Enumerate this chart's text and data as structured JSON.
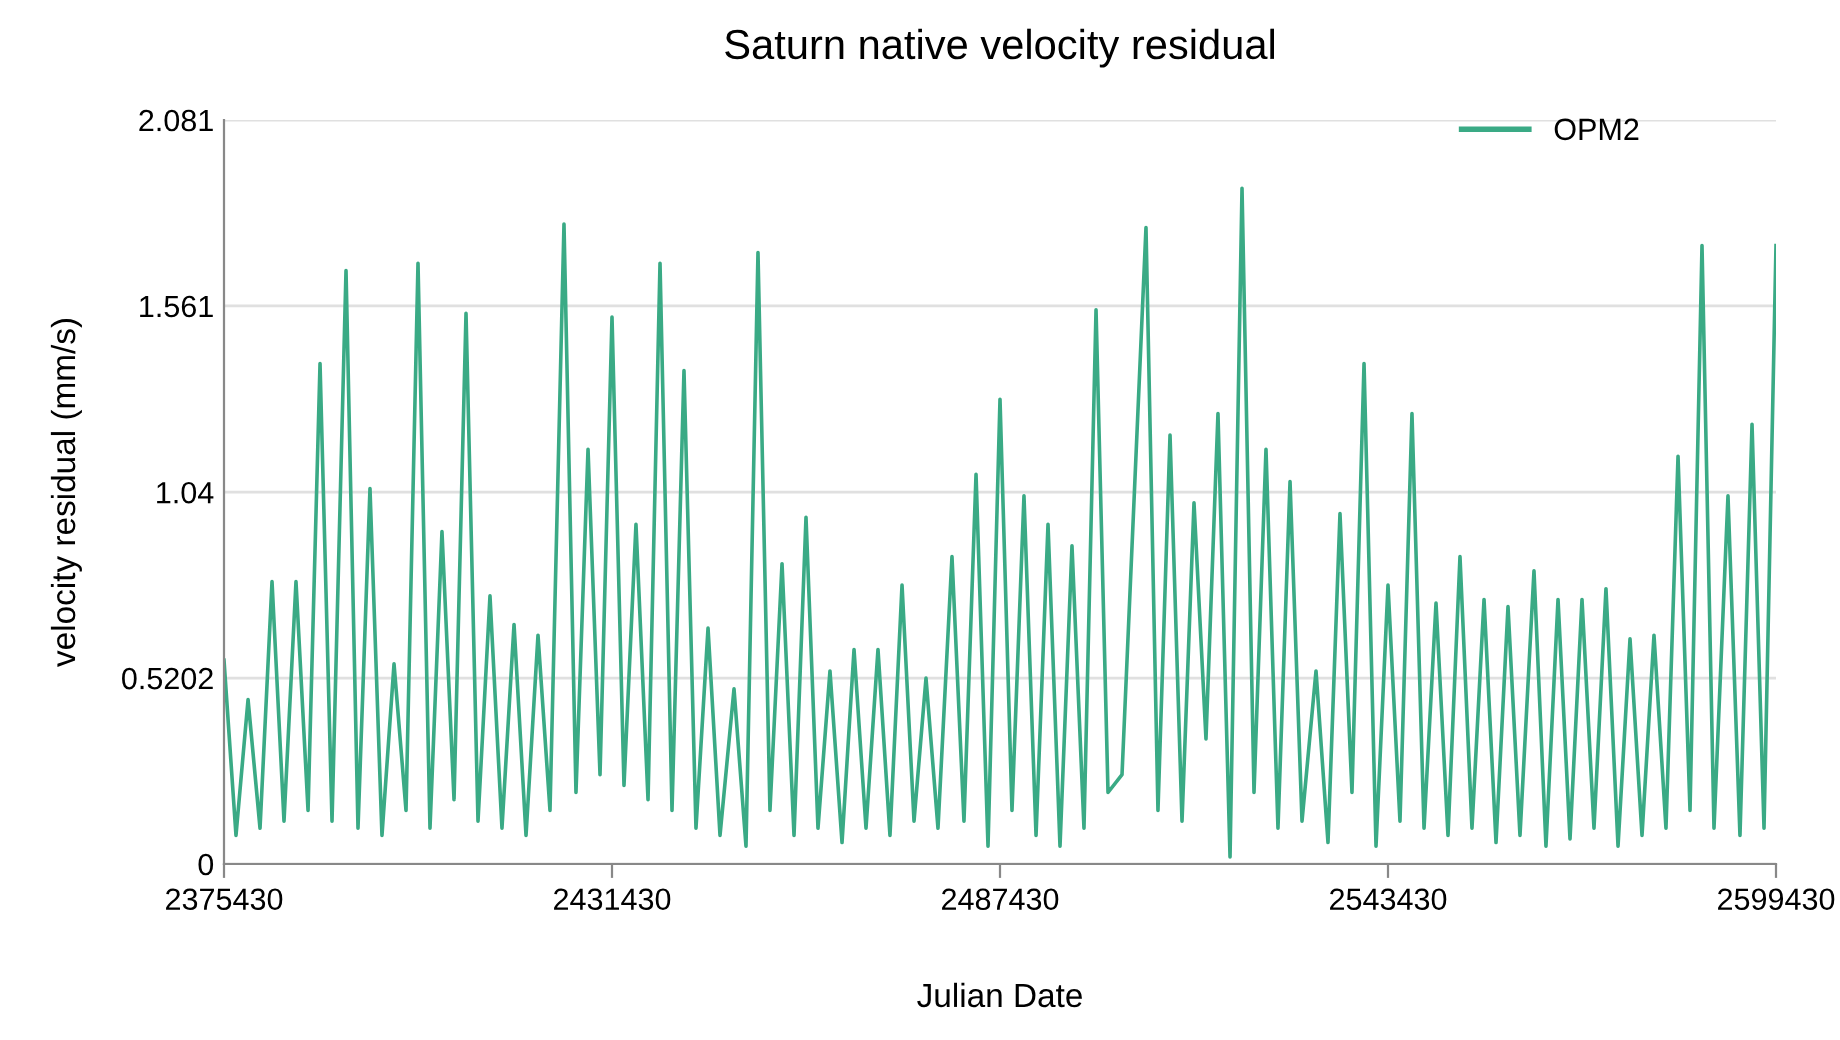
{
  "chart_data": {
    "type": "line",
    "title": "Saturn native velocity residual",
    "xlabel": "Julian Date",
    "ylabel": "velocity residual (mm/s)",
    "xlim": [
      2375430,
      2599430
    ],
    "xticks": [
      2375430,
      2431430,
      2487430,
      2543430,
      2599430
    ],
    "ylim": [
      0,
      2.081
    ],
    "yticks": [
      0,
      0.5202,
      1.04,
      1.561,
      2.081
    ],
    "grid": "y",
    "legend": "top right",
    "x": [
      2375430,
      2377160,
      2378900,
      2380630,
      2382360,
      2384090,
      2385820,
      2387560,
      2389290,
      2391020,
      2393040,
      2394770,
      2396500,
      2398230,
      2399970,
      2401700,
      2403430,
      2405160,
      2406890,
      2408630,
      2410360,
      2412090,
      2413820,
      2415550,
      2417290,
      2419020,
      2420750,
      2422480,
      2424500,
      2426230,
      2427970,
      2429700,
      2431430,
      2433160,
      2434890,
      2436630,
      2438360,
      2440090,
      2441820,
      2443550,
      2445290,
      2447020,
      2449040,
      2450770,
      2452500,
      2454230,
      2455970,
      2457700,
      2459430,
      2461160,
      2462890,
      2464630,
      2466360,
      2468090,
      2469820,
      2471550,
      2473290,
      2475020,
      2476750,
      2478480,
      2480500,
      2482230,
      2483970,
      2485700,
      2487430,
      2489160,
      2490890,
      2492630,
      2494360,
      2496090,
      2497820,
      2499550,
      2501290,
      2503020,
      2505040,
      2508500,
      2510230,
      2511970,
      2513700,
      2515430,
      2517160,
      2518890,
      2520630,
      2522360,
      2524090,
      2525820,
      2527550,
      2529290,
      2531020,
      2533040,
      2534770,
      2536500,
      2538230,
      2539970,
      2541700,
      2543430,
      2545160,
      2546890,
      2548630,
      2550360,
      2552090,
      2553820,
      2555550,
      2557290,
      2559020,
      2560750,
      2562480,
      2564500,
      2566230,
      2567970,
      2569700,
      2571430,
      2573160,
      2574890,
      2576630,
      2578360,
      2580090,
      2581820,
      2583550,
      2585290,
      2587020,
      2588750,
      2590480,
      2592500,
      2594230,
      2595970,
      2597700,
      2599430
    ],
    "series": [
      {
        "name": "OPM2",
        "color": "#3aaa85",
        "values": [
          0.57,
          0.08,
          0.46,
          0.1,
          0.79,
          0.12,
          0.79,
          0.15,
          1.4,
          0.12,
          1.66,
          0.1,
          1.05,
          0.08,
          0.56,
          0.15,
          1.68,
          0.1,
          0.93,
          0.18,
          1.54,
          0.12,
          0.75,
          0.1,
          0.67,
          0.08,
          0.64,
          0.15,
          1.79,
          0.2,
          1.16,
          0.25,
          1.53,
          0.22,
          0.95,
          0.18,
          1.68,
          0.15,
          1.38,
          0.1,
          0.66,
          0.08,
          0.49,
          0.05,
          1.71,
          0.15,
          0.84,
          0.08,
          0.97,
          0.1,
          0.54,
          0.06,
          0.6,
          0.1,
          0.6,
          0.08,
          0.78,
          0.12,
          0.52,
          0.1,
          0.86,
          0.12,
          1.09,
          0.05,
          1.3,
          0.15,
          1.03,
          0.08,
          0.95,
          0.05,
          0.89,
          0.1,
          1.55,
          0.2,
          0.25,
          1.78,
          0.15,
          1.2,
          0.12,
          1.01,
          0.35,
          1.26,
          0.02,
          1.89,
          0.2,
          1.16,
          0.1,
          1.07,
          0.12,
          0.54,
          0.06,
          0.98,
          0.2,
          1.4,
          0.05,
          0.78,
          0.12,
          1.26,
          0.1,
          0.73,
          0.08,
          0.86,
          0.1,
          0.74,
          0.06,
          0.72,
          0.08,
          0.82,
          0.05,
          0.74,
          0.07,
          0.74,
          0.1,
          0.77,
          0.05,
          0.63,
          0.08,
          0.64,
          0.1,
          1.14,
          0.15,
          1.73,
          0.1,
          1.03,
          0.08,
          1.23,
          0.1,
          1.73
        ]
      }
    ]
  }
}
